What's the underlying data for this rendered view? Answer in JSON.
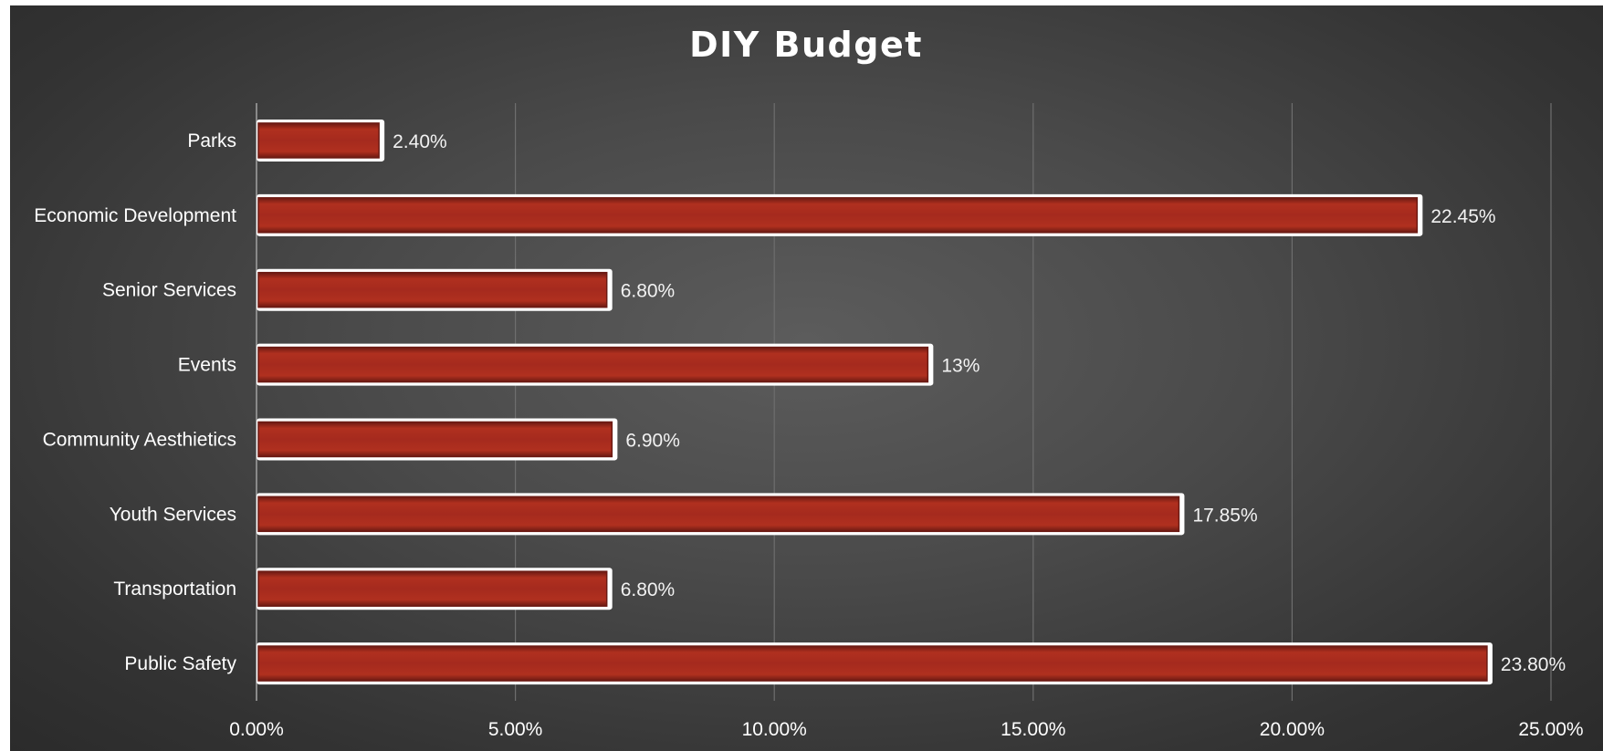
{
  "chart_data": {
    "type": "bar",
    "orientation": "horizontal",
    "title": "DIY Budget",
    "xlabel": "",
    "ylabel": "",
    "categories": [
      "Parks",
      "Economic Development",
      "Senior Services",
      "Events",
      "Community Aesthietics",
      "Youth Services",
      "Transportation",
      "Public Safety"
    ],
    "values": [
      2.4,
      22.45,
      6.8,
      13,
      6.9,
      17.85,
      6.8,
      23.8
    ],
    "data_labels": [
      "2.40%",
      "22.45%",
      "6.80%",
      "13%",
      "6.90%",
      "17.85%",
      "6.80%",
      "23.80%"
    ],
    "xlim": [
      0,
      25
    ],
    "x_ticks": [
      0,
      5,
      10,
      15,
      20,
      25
    ],
    "x_tick_labels": [
      "0.00%",
      "5.00%",
      "10.00%",
      "15.00%",
      "20.00%",
      "25.00%"
    ],
    "grid": "vertical",
    "legend": "none",
    "colors": {
      "bar_fill": "#a52a1e",
      "bar_dark": "#6b1a13",
      "bar_outline": "#ffffff",
      "gridline": "#6e6e6e",
      "text": "#ffffff"
    }
  }
}
